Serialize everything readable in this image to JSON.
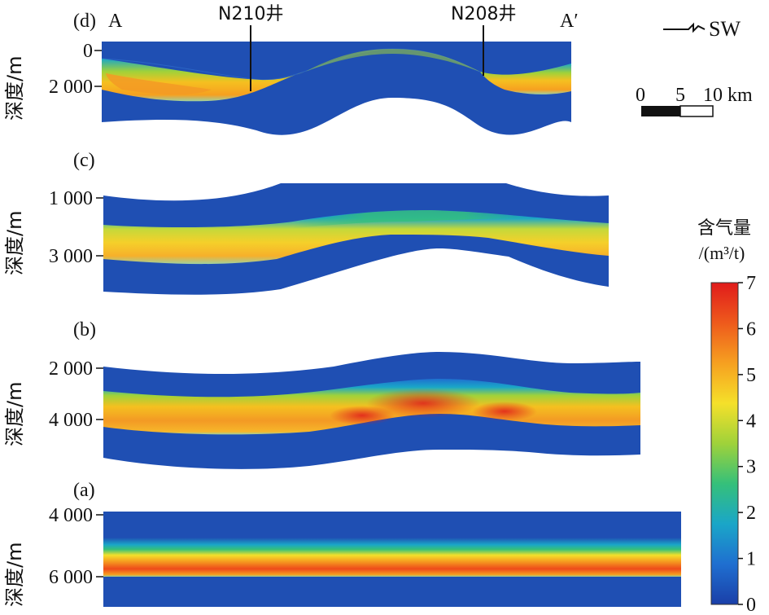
{
  "panels": {
    "d": {
      "label": "(d)",
      "ticks": [
        "0",
        "2 000"
      ],
      "ylabel": "深度/m"
    },
    "c": {
      "label": "(c)",
      "ticks": [
        "1 000",
        "3 000"
      ],
      "ylabel": "深度/m"
    },
    "b": {
      "label": "(b)",
      "ticks": [
        "2 000",
        "4 000"
      ],
      "ylabel": "深度/m"
    },
    "a": {
      "label": "(a)",
      "ticks": [
        "4 000",
        "6 000"
      ],
      "ylabel": "深度/m"
    }
  },
  "section": {
    "start": "A",
    "end": "A′"
  },
  "wells": {
    "left": "N210井",
    "right": "N208井"
  },
  "compass": {
    "label": "SW"
  },
  "scalebar": {
    "ticks": [
      "0",
      "5",
      "10 km"
    ]
  },
  "colorbar": {
    "title_line1": "含气量",
    "title_line2": "/(m³/t)",
    "ticks": [
      "0",
      "1",
      "2",
      "3",
      "4",
      "5",
      "6",
      "7"
    ],
    "stops": [
      "#1a3fa8",
      "#1f6fd0",
      "#1aa6c8",
      "#35c07a",
      "#9fd23a",
      "#f5e02a",
      "#f6a020",
      "#ee5a1c",
      "#e01b1b"
    ]
  },
  "colors": {
    "background_fill": "#1f4fb3"
  }
}
